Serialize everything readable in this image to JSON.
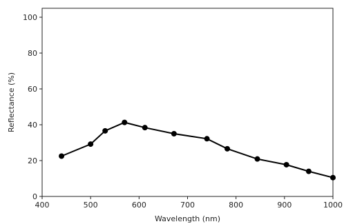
{
  "chart_data": {
    "type": "line",
    "title": "",
    "xlabel": "Wavelength (nm)",
    "ylabel": "Reflectance (%)",
    "xlim": [
      400,
      1000
    ],
    "ylim": [
      0,
      105
    ],
    "xticks": [
      400,
      500,
      600,
      700,
      800,
      900,
      1000
    ],
    "yticks": [
      0,
      20,
      40,
      60,
      80,
      100
    ],
    "grid": false,
    "legend": "none",
    "series": [
      {
        "x": [
          440,
          500,
          530,
          570,
          612,
          672,
          740,
          782,
          844,
          904,
          950,
          1000
        ],
        "y": [
          22.5,
          29.2,
          36.6,
          41.3,
          38.4,
          35.0,
          32.2,
          26.6,
          20.9,
          17.7,
          14.0,
          10.5
        ],
        "color": "#000000",
        "marker": "circle"
      }
    ]
  }
}
